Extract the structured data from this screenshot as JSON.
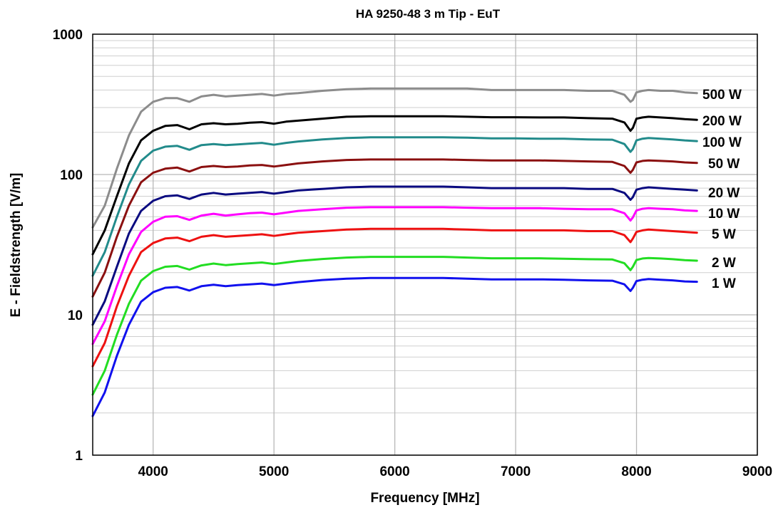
{
  "chart_data": {
    "type": "line",
    "title": "HA 9250-48   3 m Tip - EuT",
    "xlabel": "Frequency [MHz]",
    "ylabel": "E - Fieldstrength [V/m]",
    "xlim": [
      3500,
      9000
    ],
    "ylim": [
      1,
      1000
    ],
    "yscale": "log",
    "grid": true,
    "x_ticks": [
      "4000",
      "5000",
      "6000",
      "7000",
      "8000",
      "9000"
    ],
    "y_ticks": [
      "1",
      "10",
      "100",
      "1000"
    ],
    "x": [
      3500,
      3600,
      3700,
      3800,
      3900,
      4000,
      4100,
      4200,
      4300,
      4400,
      4500,
      4600,
      4700,
      4800,
      4900,
      5000,
      5100,
      5200,
      5400,
      5600,
      5800,
      6000,
      6200,
      6400,
      6600,
      6800,
      7000,
      7200,
      7400,
      7600,
      7800,
      7900,
      7950,
      7970,
      8000,
      8050,
      8100,
      8200,
      8300,
      8400,
      8500
    ],
    "series": [
      {
        "name": "500 W",
        "color": "#8c8c8c",
        "values": [
          42,
          60,
          110,
          190,
          280,
          330,
          350,
          350,
          330,
          360,
          370,
          360,
          365,
          370,
          375,
          365,
          375,
          380,
          395,
          405,
          410,
          410,
          410,
          410,
          410,
          400,
          400,
          400,
          400,
          395,
          395,
          370,
          330,
          340,
          385,
          395,
          400,
          395,
          395,
          385,
          380
        ]
      },
      {
        "name": "200 W",
        "color": "#000000",
        "values": [
          27,
          40,
          70,
          120,
          175,
          205,
          222,
          225,
          210,
          228,
          232,
          228,
          230,
          234,
          236,
          230,
          238,
          242,
          250,
          258,
          260,
          260,
          260,
          260,
          258,
          256,
          256,
          255,
          255,
          252,
          250,
          235,
          205,
          215,
          250,
          255,
          258,
          255,
          252,
          248,
          245
        ]
      },
      {
        "name": "100 W",
        "color": "#228b8b",
        "values": [
          19,
          28,
          50,
          85,
          125,
          148,
          158,
          160,
          150,
          162,
          165,
          162,
          164,
          166,
          168,
          163,
          168,
          172,
          178,
          182,
          184,
          184,
          184,
          184,
          183,
          181,
          181,
          180,
          180,
          178,
          177,
          165,
          145,
          152,
          175,
          180,
          182,
          180,
          178,
          175,
          173
        ]
      },
      {
        "name": "50 W",
        "color": "#8b1010",
        "values": [
          13.5,
          20,
          36,
          60,
          88,
          103,
          110,
          112,
          105,
          113,
          115,
          113,
          114,
          116,
          117,
          114,
          117,
          120,
          124,
          127,
          128,
          128,
          128,
          128,
          127,
          126,
          126,
          126,
          125,
          124,
          123,
          115,
          103,
          108,
          122,
          125,
          126,
          125,
          124,
          122,
          121
        ]
      },
      {
        "name": "20 W",
        "color": "#0a0a80",
        "values": [
          8.5,
          12.5,
          22,
          38,
          55,
          65,
          70,
          71,
          67,
          72,
          74,
          72,
          73,
          74,
          75,
          73,
          75,
          77,
          79,
          81,
          82,
          82,
          82,
          82,
          81,
          80,
          80,
          80,
          80,
          79,
          79,
          74,
          66,
          69,
          78,
          80,
          81,
          80,
          79,
          78,
          77
        ]
      },
      {
        "name": "10 W",
        "color": "#ff00ff",
        "values": [
          6.2,
          9,
          16,
          27,
          39,
          46,
          50,
          50.5,
          47.5,
          51,
          52.5,
          51,
          52,
          53,
          53.5,
          52,
          53.5,
          55,
          56.5,
          58,
          58.5,
          58.5,
          58.5,
          58.5,
          58,
          57.5,
          57.5,
          57.5,
          57,
          56.5,
          56.5,
          53,
          47,
          49.5,
          55.5,
          57,
          57.5,
          57,
          56.5,
          55.5,
          55
        ]
      },
      {
        "name": "5 W",
        "color": "#ee1111",
        "values": [
          4.3,
          6.3,
          11.5,
          19,
          28,
          32.5,
          35,
          35.5,
          33.5,
          36,
          37,
          36,
          36.5,
          37,
          37.5,
          36.5,
          37.5,
          38.5,
          39.5,
          40.5,
          41,
          41,
          41,
          41,
          40.5,
          40,
          40,
          40,
          40,
          39.5,
          39.5,
          37,
          33,
          35,
          39,
          40,
          40.5,
          40,
          39.5,
          39,
          38.5
        ]
      },
      {
        "name": "2 W",
        "color": "#22dd22",
        "values": [
          2.7,
          4,
          7.2,
          12,
          17.5,
          20.5,
          22,
          22.3,
          21,
          22.5,
          23.2,
          22.6,
          23,
          23.3,
          23.6,
          23,
          23.6,
          24.2,
          25,
          25.6,
          25.9,
          25.9,
          25.9,
          25.9,
          25.6,
          25.3,
          25.3,
          25.3,
          25.1,
          24.9,
          24.8,
          23.3,
          20.8,
          22,
          24.6,
          25.2,
          25.4,
          25.2,
          24.9,
          24.5,
          24.3
        ]
      },
      {
        "name": "1 W",
        "color": "#1111ee",
        "values": [
          1.9,
          2.8,
          5.1,
          8.5,
          12.4,
          14.5,
          15.6,
          15.8,
          14.9,
          16,
          16.4,
          16,
          16.3,
          16.5,
          16.7,
          16.3,
          16.7,
          17.1,
          17.7,
          18.1,
          18.3,
          18.3,
          18.3,
          18.3,
          18.1,
          17.9,
          17.9,
          17.9,
          17.8,
          17.6,
          17.5,
          16.5,
          14.8,
          15.6,
          17.4,
          17.8,
          18,
          17.8,
          17.6,
          17.3,
          17.2
        ]
      }
    ]
  }
}
